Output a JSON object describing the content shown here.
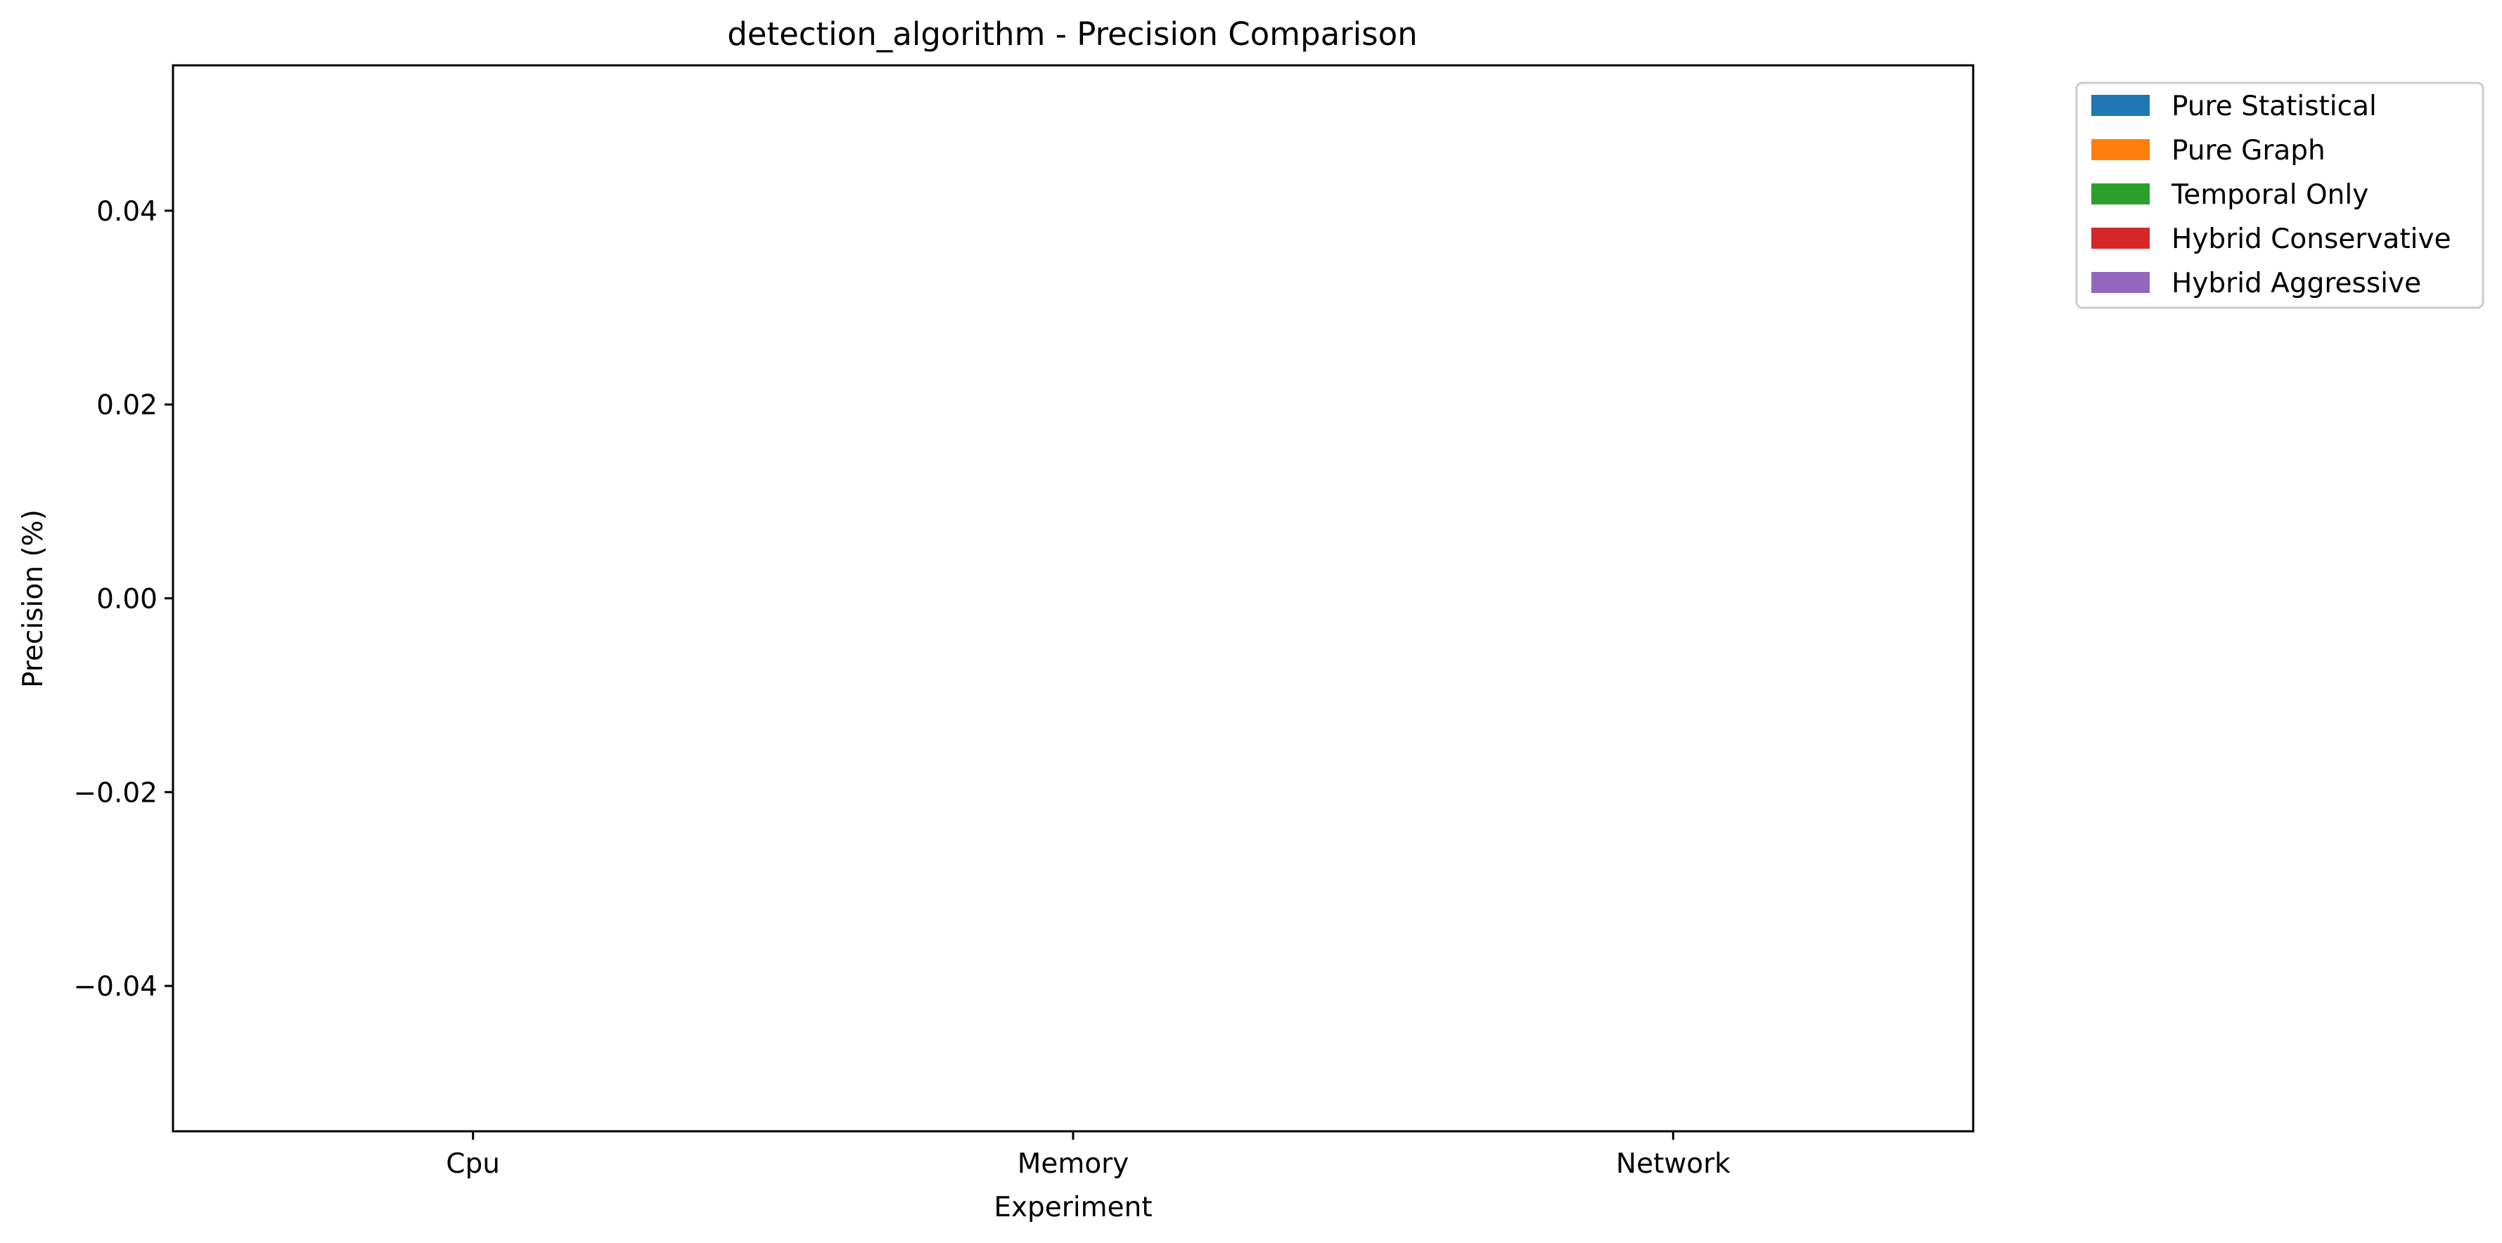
{
  "chart_data": {
    "type": "bar",
    "title": "detection_algorithm - Precision Comparison",
    "xlabel": "Experiment",
    "ylabel": "Precision (%)",
    "categories": [
      "Cpu",
      "Memory",
      "Network"
    ],
    "ylim": [
      -0.055,
      0.055
    ],
    "yticks": [
      -0.04,
      -0.02,
      0.0,
      0.02,
      0.04
    ],
    "ytick_labels": [
      "−0.04",
      "−0.02",
      "0.00",
      "0.02",
      "0.04"
    ],
    "grid": false,
    "legend_position": "outside-top-right",
    "series": [
      {
        "name": "Pure Statistical",
        "color": "#1f77b4",
        "values": [
          0,
          0,
          0
        ]
      },
      {
        "name": "Pure Graph",
        "color": "#ff7f0e",
        "values": [
          0,
          0,
          0
        ]
      },
      {
        "name": "Temporal Only",
        "color": "#2ca02c",
        "values": [
          0,
          0,
          0
        ]
      },
      {
        "name": "Hybrid Conservative",
        "color": "#d62728",
        "values": [
          0,
          0,
          0
        ]
      },
      {
        "name": "Hybrid Aggressive",
        "color": "#9467bd",
        "values": [
          0,
          0,
          0
        ]
      }
    ]
  }
}
